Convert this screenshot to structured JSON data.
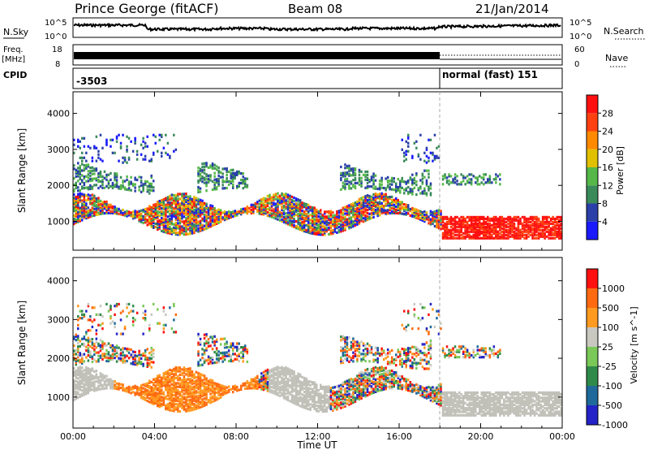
{
  "header": {
    "station": "Prince George (fitACF)",
    "beam": "Beam 08",
    "date": "21/Jan/2014"
  },
  "small_panels": {
    "nsky_label": "N.Sky",
    "nsky_ticks": [
      "10^5",
      "10^0"
    ],
    "nsearch_label": "N.Search",
    "nsearch_ticks": [
      "10^5",
      "10^0"
    ],
    "freq_label": "Freq.",
    "freq_unit": "[MHz]",
    "freq_ticks": [
      "18",
      "8"
    ],
    "nave_label": "Nave",
    "nave_ticks": [
      "60",
      "0"
    ],
    "cpid_label": "CPID",
    "cpid_left": "-3503",
    "cpid_right": "normal (fast) 151"
  },
  "colors": {
    "power": [
      "#1a1aff",
      "#2a3fa8",
      "#3a8a5a",
      "#55b848",
      "#e0c000",
      "#ff8a00",
      "#ff4010",
      "#ff1010"
    ],
    "velocity": [
      "#2323c8",
      "#1f6a9a",
      "#2f8a4a",
      "#7ac858",
      "#c8c8c0",
      "#ff9a20",
      "#ff6a10",
      "#ff1010"
    ],
    "ground_scatter": "#c0c0b8"
  },
  "chart_data": [
    {
      "type": "heatmap",
      "panel": "power",
      "ylabel": "Slant Range [km]",
      "y_ticks": [
        "1000",
        "2000",
        "3000",
        "4000"
      ],
      "ylim": [
        200,
        4600
      ],
      "colorbar_label": "Power [dB]",
      "colorbar_ticks": [
        "4",
        "8",
        "12",
        "16",
        "20",
        "24",
        "28"
      ],
      "crange": [
        0,
        32
      ],
      "x_ticks": [
        "00:00",
        "04:00",
        "08:00",
        "12:00",
        "16:00",
        "20:00",
        "00:00"
      ],
      "xlim_hours": [
        0,
        24
      ],
      "cpid_change_hour": 18
    },
    {
      "type": "heatmap",
      "panel": "velocity",
      "ylabel": "Slant Range [km]",
      "y_ticks": [
        "1000",
        "2000",
        "3000",
        "4000"
      ],
      "ylim": [
        200,
        4600
      ],
      "colorbar_label": "Velocity [m s^-1]",
      "colorbar_ticks": [
        "1000",
        "500",
        "100",
        "25",
        "-25",
        "-100",
        "-500",
        "-1000"
      ],
      "x_ticks": [
        "00:00",
        "04:00",
        "08:00",
        "12:00",
        "16:00",
        "20:00",
        "00:00"
      ],
      "xlabel": "Time UT",
      "xlim_hours": [
        0,
        24
      ],
      "cpid_change_hour": 18
    }
  ]
}
